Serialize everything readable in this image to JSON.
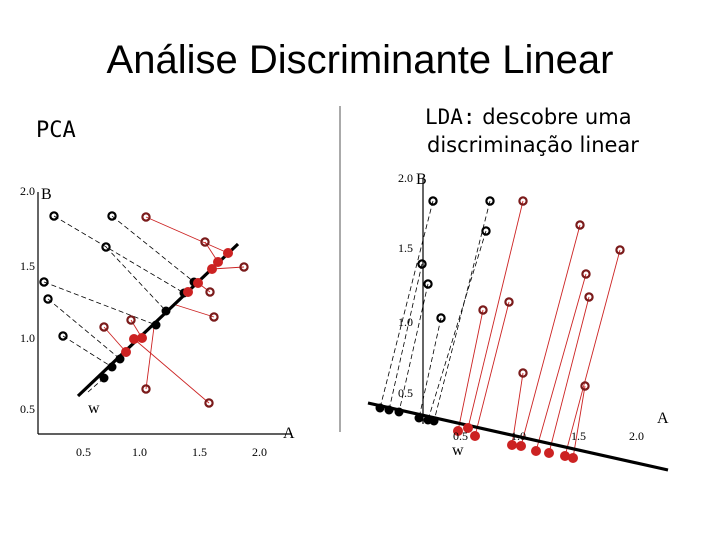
{
  "title": "Análise Discriminante Linear",
  "pca_label": "PCA",
  "lda_label": {
    "prefix": "LDA:",
    "line1_rest": " descobre uma",
    "line2": "discriminação linear"
  },
  "axes": {
    "x_name": "A",
    "y_name": "B",
    "w_name": "w"
  },
  "ticks": {
    "left_y": [
      "2.0",
      "1.5",
      "1.0",
      "0.5"
    ],
    "left_x": [
      "0.5",
      "1.0",
      "1.5",
      "2.0"
    ],
    "right_y": [
      "2.0",
      "1.5",
      "1.0",
      "0.5"
    ],
    "right_x": [
      "0.5",
      "1.0",
      "1.5",
      "2.0"
    ]
  },
  "colors": {
    "class_dark": "#000000",
    "class_red": "#cc2222",
    "line_red": "#cc2222",
    "line_dark": "#000000"
  }
}
